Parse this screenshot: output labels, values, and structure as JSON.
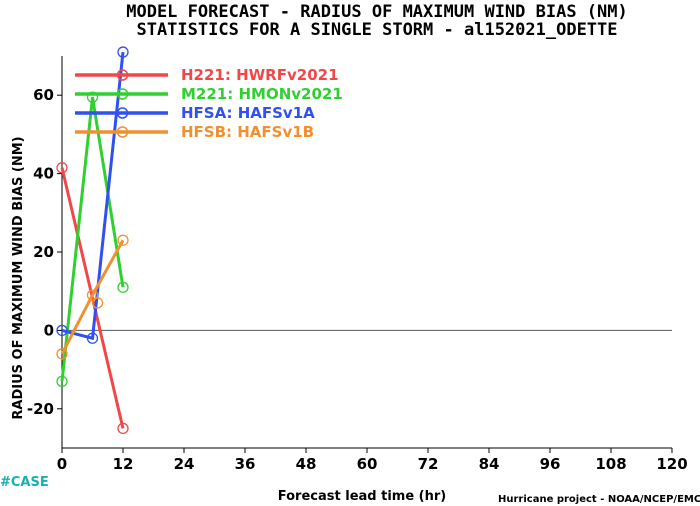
{
  "title_line1": "MODEL FORECAST - RADIUS OF MAXIMUM WIND BIAS (NM)",
  "title_line2": "STATISTICS FOR A SINGLE STORM - al152021_ODETTE",
  "case_label": "#CASE",
  "footer": "Hurricane project - NOAA/NCEP/EMC",
  "chart_data": {
    "type": "line",
    "xlabel": "Forecast lead time (hr)",
    "ylabel": "RADIUS OF MAXIMUM WIND BIAS (NM)",
    "xlim": [
      0,
      120
    ],
    "ylim": [
      -30,
      70
    ],
    "xticks": [
      0,
      12,
      24,
      36,
      48,
      60,
      72,
      84,
      96,
      108,
      120
    ],
    "yticks": [
      -20,
      0,
      20,
      40,
      60
    ],
    "zero_line": true,
    "legend_position": "top-left",
    "series": [
      {
        "name": "H221: HWRFv2021",
        "color": "#f04848",
        "x": [
          0,
          12
        ],
        "y": [
          41.5,
          -25
        ]
      },
      {
        "name": "M221: HMONv2021",
        "color": "#30d030",
        "x": [
          0,
          6,
          12
        ],
        "y": [
          -13,
          59.5,
          11
        ]
      },
      {
        "name": "HFSA: HAFSv1A",
        "color": "#3050f0",
        "x": [
          0,
          6,
          12
        ],
        "y": [
          0,
          -2,
          71
        ]
      },
      {
        "name": "HFSB: HAFSv1B",
        "color": "#f09030",
        "x": [
          0,
          6,
          12
        ],
        "y": [
          -6,
          9,
          23
        ]
      }
    ],
    "legend_extra_points": [
      7
    ]
  }
}
